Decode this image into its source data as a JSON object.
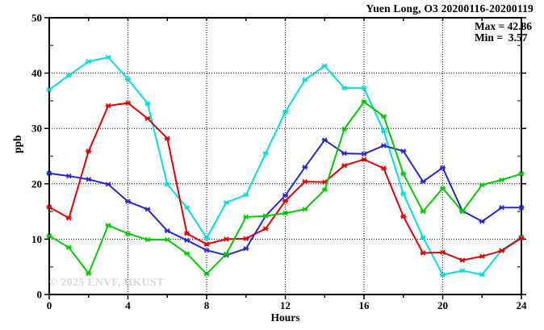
{
  "title": "Yuen Long, O3 20200116-20200119",
  "stats": {
    "max_label": "Max = 42.86",
    "min_label": "Min =  3.57"
  },
  "watermark": "© 2025 ENVF, HKUST",
  "chart_data": {
    "type": "line",
    "title": "Yuen Long, O3 20200116-20200119",
    "xlabel": "Hours",
    "ylabel": "ppb",
    "xlim": [
      0,
      24
    ],
    "ylim": [
      0,
      50
    ],
    "x_ticks_major": [
      0,
      4,
      8,
      12,
      16,
      20,
      24
    ],
    "x_ticks_minor": [
      2,
      6,
      10,
      14,
      18,
      22
    ],
    "y_ticks_major": [
      0,
      10,
      20,
      30,
      40,
      50
    ],
    "y_ticks_minor": [
      5,
      15,
      25,
      35,
      45
    ],
    "grid": "dotted black at major ticks, interior only",
    "legend_position": "none",
    "max": 42.86,
    "min": 3.57,
    "x": [
      0,
      1,
      2,
      3,
      4,
      5,
      6,
      7,
      8,
      9,
      10,
      11,
      12,
      13,
      14,
      15,
      16,
      17,
      18,
      19,
      20,
      21,
      22,
      23,
      24
    ],
    "series": [
      {
        "name": "cyan-day",
        "color": "#00e0e0",
        "values": [
          37.0,
          39.6,
          42.1,
          42.86,
          38.9,
          34.5,
          19.9,
          15.7,
          10.2,
          16.6,
          18.0,
          25.5,
          33.0,
          38.8,
          41.3,
          37.3,
          37.3,
          29.5,
          18.2,
          10.3,
          3.57,
          4.3,
          3.6,
          8.0,
          10.4
        ]
      },
      {
        "name": "red-day",
        "color": "#e80000",
        "values": [
          15.8,
          13.8,
          25.9,
          34.1,
          34.6,
          31.8,
          28.2,
          11.0,
          9.1,
          10.0,
          10.1,
          11.9,
          16.9,
          20.4,
          20.3,
          23.3,
          24.4,
          22.8,
          14.1,
          7.5,
          7.6,
          6.2,
          6.9,
          7.9,
          10.2
        ]
      },
      {
        "name": "blue-day",
        "color": "#2626d2",
        "values": [
          21.9,
          21.4,
          20.8,
          19.9,
          16.8,
          15.4,
          11.5,
          9.8,
          8.0,
          7.1,
          8.3,
          14.2,
          17.9,
          23.0,
          27.9,
          25.5,
          25.4,
          26.9,
          25.9,
          20.4,
          22.9,
          15.1,
          13.2,
          15.7,
          15.7
        ]
      },
      {
        "name": "green-day",
        "color": "#00cc00",
        "values": [
          10.6,
          8.5,
          3.8,
          12.5,
          11.0,
          9.9,
          9.9,
          7.4,
          3.7,
          7.3,
          14.0,
          14.2,
          14.7,
          15.4,
          18.9,
          29.9,
          34.8,
          32.2,
          21.8,
          15.0,
          19.2,
          15.0,
          19.8,
          20.7,
          21.8
        ]
      }
    ]
  }
}
